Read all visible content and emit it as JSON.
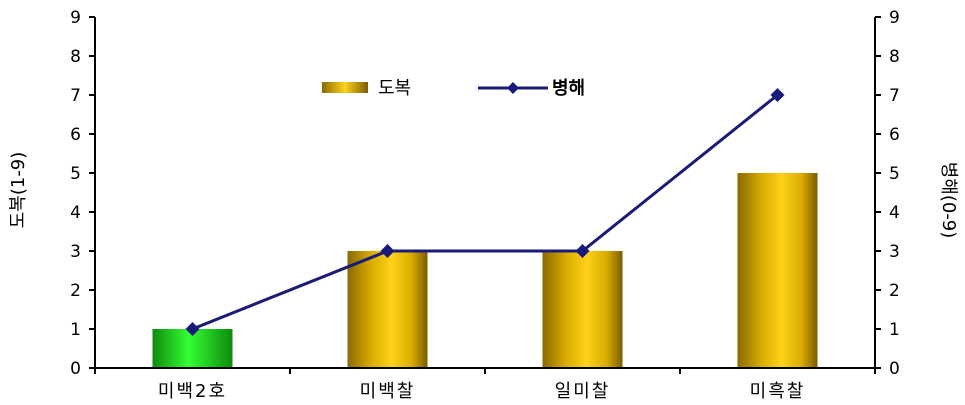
{
  "chart_data": {
    "type": "bar",
    "categories": [
      "미백2호",
      "미백찰",
      "일미찰",
      "미흑찰"
    ],
    "series": [
      {
        "name": "도복",
        "type": "bar",
        "axis": "left",
        "values": [
          1,
          3,
          3,
          5
        ],
        "color": "#D4A800"
      },
      {
        "name": "병해",
        "type": "line",
        "axis": "right",
        "values": [
          1,
          3,
          3,
          7
        ],
        "color": "#1A1A7A"
      }
    ],
    "bar_colors": [
      "#22CC22",
      "#E0B000",
      "#E0B000",
      "#E0B000"
    ],
    "ylabel_left": "도복(1-9)",
    "ylabel_right": "병해(0-9)",
    "ylim": [
      0,
      9
    ],
    "yticks": [
      0,
      1,
      2,
      3,
      4,
      5,
      6,
      7,
      8,
      9
    ],
    "grid": false,
    "legend": "top-center"
  }
}
